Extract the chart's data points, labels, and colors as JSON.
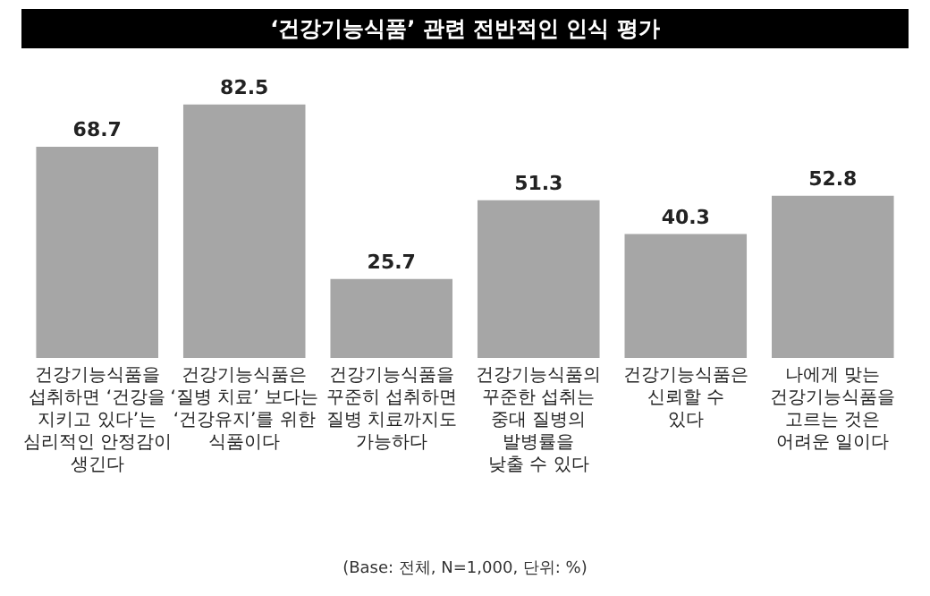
{
  "chart_data": {
    "type": "bar",
    "title": "‘건강기능식품’ 관련 전반적인 인식 평가",
    "categories": [
      "건강기능식품을\n섭취하면 ‘건강을\n지키고 있다’는\n심리적인 안정감이\n생긴다",
      "건강기능식품은\n‘질병 치료’ 보다는\n‘건강유지’를 위한\n식품이다",
      "건강기능식품을\n꾸준히 섭취하면\n질병 치료까지도\n가능하다",
      "건강기능식품의\n꾸준한 섭취는\n중대 질병의\n발병률을\n낮출 수 있다",
      "건강기능식품은\n신뢰할 수\n있다",
      "나에게 맞는\n건강기능식품을\n고르는 것은\n어려운 일이다"
    ],
    "values": [
      68.7,
      82.5,
      25.7,
      51.3,
      40.3,
      52.8
    ],
    "color": "#a6a6a6",
    "data_labels": true,
    "annotations": [
      "(Base: 전체, N=1,000, 단위: %)"
    ]
  }
}
